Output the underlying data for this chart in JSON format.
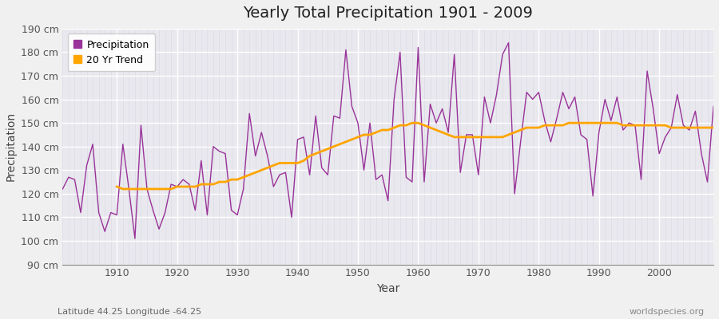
{
  "title": "Yearly Total Precipitation 1901 - 2009",
  "xlabel": "Year",
  "ylabel": "Precipitation",
  "subtitle": "Latitude 44.25 Longitude -64.25",
  "watermark": "worldspecies.org",
  "years": [
    1901,
    1902,
    1903,
    1904,
    1905,
    1906,
    1907,
    1908,
    1909,
    1910,
    1911,
    1912,
    1913,
    1914,
    1915,
    1916,
    1917,
    1918,
    1919,
    1920,
    1921,
    1922,
    1923,
    1924,
    1925,
    1926,
    1927,
    1928,
    1929,
    1930,
    1931,
    1932,
    1933,
    1934,
    1935,
    1936,
    1937,
    1938,
    1939,
    1940,
    1941,
    1942,
    1943,
    1944,
    1945,
    1946,
    1947,
    1948,
    1949,
    1950,
    1951,
    1952,
    1953,
    1954,
    1955,
    1956,
    1957,
    1958,
    1959,
    1960,
    1961,
    1962,
    1963,
    1964,
    1965,
    1966,
    1967,
    1968,
    1969,
    1970,
    1971,
    1972,
    1973,
    1974,
    1975,
    1976,
    1977,
    1978,
    1979,
    1980,
    1981,
    1982,
    1983,
    1984,
    1985,
    1986,
    1987,
    1988,
    1989,
    1990,
    1991,
    1992,
    1993,
    1994,
    1995,
    1996,
    1997,
    1998,
    1999,
    2000,
    2001,
    2002,
    2003,
    2004,
    2005,
    2006,
    2007,
    2008,
    2009
  ],
  "precipitation": [
    122,
    127,
    126,
    112,
    132,
    141,
    112,
    104,
    112,
    111,
    141,
    122,
    101,
    149,
    122,
    113,
    105,
    112,
    124,
    123,
    126,
    124,
    113,
    134,
    111,
    140,
    138,
    137,
    113,
    111,
    122,
    154,
    136,
    146,
    136,
    123,
    128,
    129,
    110,
    143,
    144,
    128,
    153,
    131,
    128,
    153,
    152,
    181,
    157,
    150,
    130,
    150,
    126,
    128,
    117,
    160,
    180,
    127,
    125,
    182,
    125,
    158,
    150,
    156,
    146,
    179,
    129,
    145,
    145,
    128,
    161,
    150,
    162,
    179,
    184,
    120,
    142,
    163,
    160,
    163,
    151,
    142,
    152,
    163,
    156,
    161,
    145,
    143,
    119,
    146,
    160,
    151,
    161,
    147,
    150,
    149,
    126,
    172,
    156,
    137,
    144,
    148,
    162,
    149,
    147,
    155,
    137,
    125,
    157
  ],
  "trend_years": [
    1910,
    1911,
    1912,
    1913,
    1914,
    1915,
    1916,
    1917,
    1918,
    1919,
    1920,
    1921,
    1922,
    1923,
    1924,
    1925,
    1926,
    1927,
    1928,
    1929,
    1930,
    1931,
    1932,
    1933,
    1934,
    1935,
    1936,
    1937,
    1938,
    1939,
    1940,
    1941,
    1942,
    1943,
    1944,
    1945,
    1946,
    1947,
    1948,
    1949,
    1950,
    1951,
    1952,
    1953,
    1954,
    1955,
    1956,
    1957,
    1958,
    1959,
    1960,
    1961,
    1962,
    1963,
    1964,
    1965,
    1966,
    1967,
    1968,
    1969,
    1970,
    1971,
    1972,
    1973,
    1974,
    1975,
    1976,
    1977,
    1978,
    1979,
    1980,
    1981,
    1982,
    1983,
    1984,
    1985,
    1986,
    1987,
    1988,
    1989,
    1990,
    1991,
    1992,
    1993,
    1994,
    1995,
    1996,
    1997,
    1998,
    1999,
    2000,
    2001,
    2002,
    2003,
    2004,
    2005,
    2006,
    2007,
    2008,
    2009
  ],
  "trend": [
    123,
    122,
    122,
    122,
    122,
    122,
    122,
    122,
    122,
    122,
    123,
    123,
    123,
    123,
    124,
    124,
    124,
    125,
    125,
    126,
    126,
    127,
    128,
    129,
    130,
    131,
    132,
    133,
    133,
    133,
    133,
    134,
    136,
    137,
    138,
    139,
    140,
    141,
    142,
    143,
    144,
    145,
    145,
    146,
    147,
    147,
    148,
    149,
    149,
    150,
    150,
    149,
    148,
    147,
    146,
    145,
    144,
    144,
    144,
    144,
    144,
    144,
    144,
    144,
    144,
    145,
    146,
    147,
    148,
    148,
    148,
    149,
    149,
    149,
    149,
    150,
    150,
    150,
    150,
    150,
    150,
    150,
    150,
    150,
    149,
    149,
    149,
    149,
    149,
    149,
    149,
    149,
    148,
    148,
    148,
    148,
    148,
    148,
    148,
    148
  ],
  "precip_color": "#993399",
  "trend_color": "#FFA500",
  "fig_bg_color": "#F0F0F0",
  "ax_bg_color": "#E8E8EE",
  "grid_color": "#FFFFFF",
  "ylim": [
    90,
    190
  ],
  "yticks": [
    90,
    100,
    110,
    120,
    130,
    140,
    150,
    160,
    170,
    180,
    190
  ],
  "xlim": [
    1901,
    2009
  ]
}
